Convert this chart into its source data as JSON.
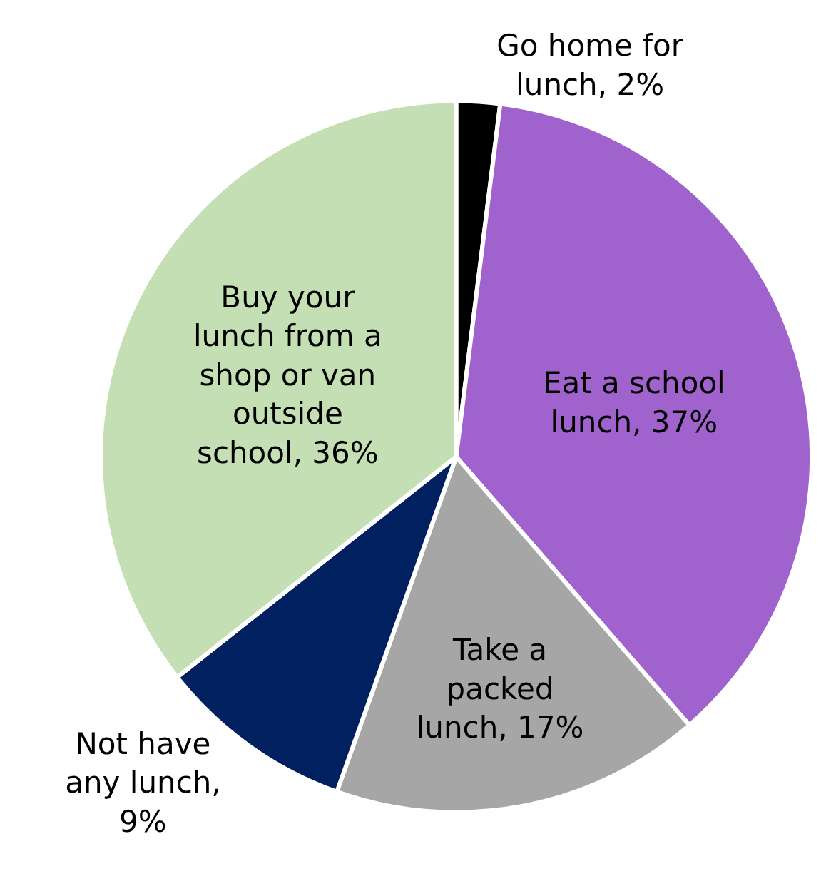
{
  "chart_data": {
    "type": "pie",
    "categories": [
      "Go home for lunch, 2%",
      "Eat a school lunch, 37%",
      "Take a packed lunch, 17%",
      "Not have any lunch, 9%",
      "Buy your lunch from a shop or van outside school, 36%"
    ],
    "values": [
      2,
      37,
      17,
      9,
      36
    ],
    "colors": [
      "#000000",
      "#a062cc",
      "#a6a6a6",
      "#002060",
      "#c5dfb4"
    ],
    "legend": false
  }
}
